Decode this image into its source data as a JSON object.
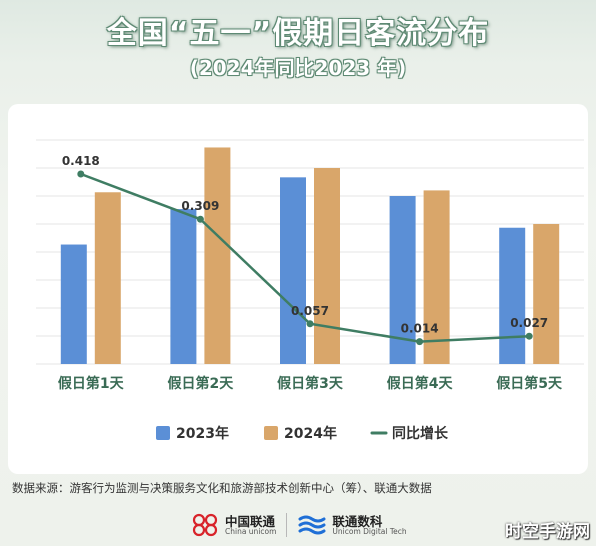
{
  "title": "全国“五一”假期日客流分布",
  "subtitle": "(2024年同比2023 年)",
  "source": "数据来源：游客行为监测与决策服务文化和旅游部技术创新中心（筹）、联通大数据",
  "logos": {
    "left_main": "中国联通",
    "left_sub": "China unicom",
    "right_main": "联通数科",
    "right_sub": "Unicom Digital Tech"
  },
  "watermark": "时空手游网",
  "colors": {
    "bar_2023": "#5b8fd6",
    "bar_2024": "#d9a66a",
    "line": "#3f7d63",
    "grid": "#e6e6e6",
    "axis_label": "#3a6b55"
  },
  "chart_data": {
    "type": "bar",
    "categories": [
      "假日第1天",
      "假日第2天",
      "假日第3天",
      "假日第4天",
      "假日第5天"
    ],
    "series": [
      {
        "name": "2023年",
        "values": [
          0.64,
          0.83,
          1.0,
          0.9,
          0.73
        ]
      },
      {
        "name": "2024年",
        "values": [
          0.92,
          1.16,
          1.05,
          0.93,
          0.75
        ]
      }
    ],
    "line_series": {
      "name": "同比增长",
      "values": [
        0.418,
        0.309,
        0.057,
        0.014,
        0.027
      ]
    },
    "line_labels": [
      "0.418",
      "0.309",
      "0.057",
      "0.014",
      "0.027"
    ],
    "ylim": [
      0,
      1.2
    ],
    "line_ylim": [
      -0.04,
      0.5
    ],
    "grid": true,
    "legend_position": "bottom-center",
    "legend": [
      {
        "label": "2023年",
        "kind": "square-blue"
      },
      {
        "label": "2024年",
        "kind": "square-orange"
      },
      {
        "label": "同比增长",
        "kind": "line-green"
      }
    ]
  }
}
